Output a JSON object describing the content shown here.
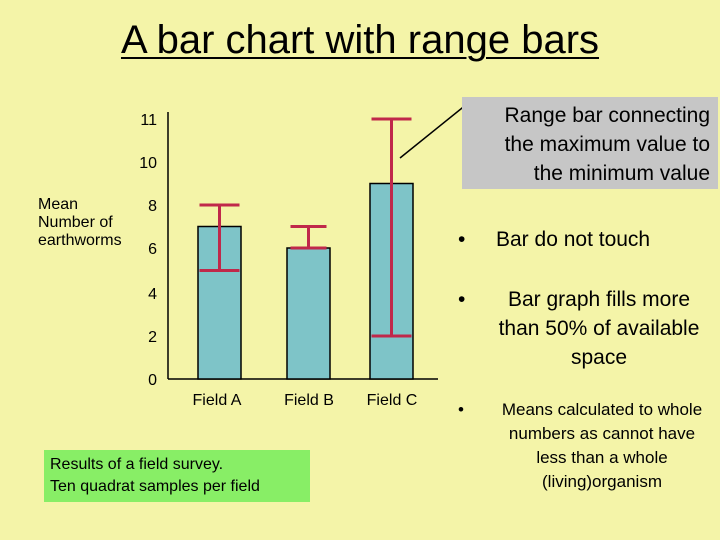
{
  "title": "A bar chart with range bars",
  "ylabel_lines": [
    "Mean",
    "Number of",
    "earthworms"
  ],
  "callout_lines": [
    "Range bar connecting",
    "the maximum value to",
    "the minimum value"
  ],
  "note_lines": [
    "Results of a field survey.",
    "Ten quadrat samples per field"
  ],
  "bullets": [
    {
      "marker": "•",
      "text": "Bar do not touch"
    },
    {
      "marker": "•",
      "text": "Bar graph fills more than 50% of available space"
    },
    {
      "marker": "•",
      "text": "Means calculated to whole numbers as cannot have less than a whole (living)organism"
    }
  ],
  "colors": {
    "background": "#f4f4a8",
    "bar": "#7ec4c8",
    "range_bar": "#c0284a",
    "callout": "#c6c6c6",
    "note": "#88ee66"
  },
  "chart_data": {
    "type": "bar",
    "title": "A bar chart with range bars",
    "ylabel": "Mean Number of earthworms",
    "xlabel": "",
    "categories": [
      "Field  A",
      "Field B",
      "Field  C"
    ],
    "values": [
      7,
      6,
      9
    ],
    "ranges": [
      [
        5,
        8
      ],
      [
        6,
        7
      ],
      [
        2,
        11
      ]
    ],
    "yticks": [
      "0",
      "2",
      "4",
      "6",
      "8",
      "10",
      "11"
    ],
    "grid": false,
    "legend": "none"
  }
}
